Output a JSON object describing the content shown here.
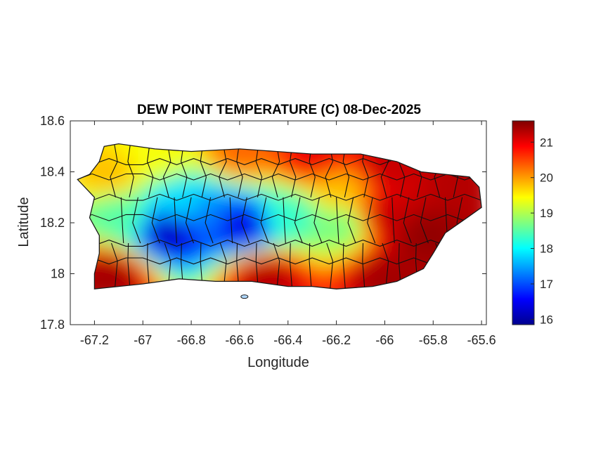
{
  "figure": {
    "title": "DEW POINT TEMPERATURE (C) 08-Dec-2025",
    "xlabel": "Longitude",
    "ylabel": "Latitude",
    "xticks": [
      "-67.2",
      "-67",
      "-66.8",
      "-66.6",
      "-66.4",
      "-66.2",
      "-66",
      "-65.8",
      "-65.6"
    ],
    "yticks": [
      "17.8",
      "18",
      "18.2",
      "18.4",
      "18.6"
    ],
    "colorbar_ticks": [
      "16",
      "17",
      "18",
      "19",
      "20",
      "21"
    ],
    "colormap": "jet",
    "colors": {
      "min": "#00008f",
      "low": "#0000ff",
      "mid_low": "#00ffff",
      "mid_high": "#ffff00",
      "high": "#ff0000",
      "max": "#800000"
    }
  },
  "chart_data": {
    "type": "heatmap",
    "variable": "Dew point temperature",
    "units": "C",
    "date": "08-Dec-2025",
    "xlim": [
      -67.3,
      -65.58
    ],
    "ylim": [
      17.8,
      18.6
    ],
    "clim": [
      15.85,
      21.6
    ],
    "region_outline": [
      [
        -67.27,
        18.37
      ],
      [
        -67.22,
        18.39
      ],
      [
        -67.18,
        18.44
      ],
      [
        -67.16,
        18.5
      ],
      [
        -67.1,
        18.51
      ],
      [
        -66.95,
        18.49
      ],
      [
        -66.8,
        18.48
      ],
      [
        -66.6,
        18.49
      ],
      [
        -66.45,
        18.48
      ],
      [
        -66.3,
        18.47
      ],
      [
        -66.1,
        18.47
      ],
      [
        -65.95,
        18.44
      ],
      [
        -65.85,
        18.4
      ],
      [
        -65.75,
        18.39
      ],
      [
        -65.65,
        18.38
      ],
      [
        -65.61,
        18.34
      ],
      [
        -65.6,
        18.26
      ],
      [
        -65.66,
        18.22
      ],
      [
        -65.75,
        18.16
      ],
      [
        -65.8,
        18.08
      ],
      [
        -65.84,
        18.02
      ],
      [
        -65.95,
        17.97
      ],
      [
        -66.05,
        17.95
      ],
      [
        -66.2,
        17.94
      ],
      [
        -66.3,
        17.95
      ],
      [
        -66.4,
        17.95
      ],
      [
        -66.55,
        17.97
      ],
      [
        -66.7,
        17.97
      ],
      [
        -66.85,
        17.98
      ],
      [
        -67.0,
        17.96
      ],
      [
        -67.1,
        17.95
      ],
      [
        -67.2,
        17.94
      ],
      [
        -67.2,
        18.0
      ],
      [
        -67.18,
        18.08
      ],
      [
        -67.18,
        18.15
      ],
      [
        -67.22,
        18.22
      ],
      [
        -67.2,
        18.3
      ],
      [
        -67.27,
        18.37
      ]
    ],
    "field_centers": [
      {
        "lon": -66.9,
        "lat": 18.16,
        "value": 16.2
      },
      {
        "lon": -66.6,
        "lat": 18.18,
        "value": 16.4
      },
      {
        "lon": -66.75,
        "lat": 18.22,
        "value": 17.3
      },
      {
        "lon": -66.85,
        "lat": 18.26,
        "value": 17.8
      },
      {
        "lon": -66.4,
        "lat": 18.22,
        "value": 18.3
      },
      {
        "lon": -66.2,
        "lat": 18.18,
        "value": 18.7
      },
      {
        "lon": -67.1,
        "lat": 18.22,
        "value": 18.5
      },
      {
        "lon": -66.0,
        "lat": 18.22,
        "value": 21.2
      },
      {
        "lon": -65.85,
        "lat": 18.15,
        "value": 21.5
      },
      {
        "lon": -65.7,
        "lat": 18.35,
        "value": 21.3
      },
      {
        "lon": -66.3,
        "lat": 18.45,
        "value": 21.0
      },
      {
        "lon": -66.0,
        "lat": 18.42,
        "value": 21.2
      },
      {
        "lon": -66.6,
        "lat": 18.47,
        "value": 20.3
      },
      {
        "lon": -66.95,
        "lat": 18.46,
        "value": 19.4
      },
      {
        "lon": -67.15,
        "lat": 18.38,
        "value": 19.8
      },
      {
        "lon": -66.5,
        "lat": 17.98,
        "value": 21.3
      },
      {
        "lon": -66.0,
        "lat": 17.98,
        "value": 21.4
      },
      {
        "lon": -67.15,
        "lat": 17.98,
        "value": 21.4
      },
      {
        "lon": -66.2,
        "lat": 18.32,
        "value": 19.8
      }
    ],
    "small_islands": [
      {
        "lon": -66.58,
        "lat": 17.91
      }
    ]
  }
}
